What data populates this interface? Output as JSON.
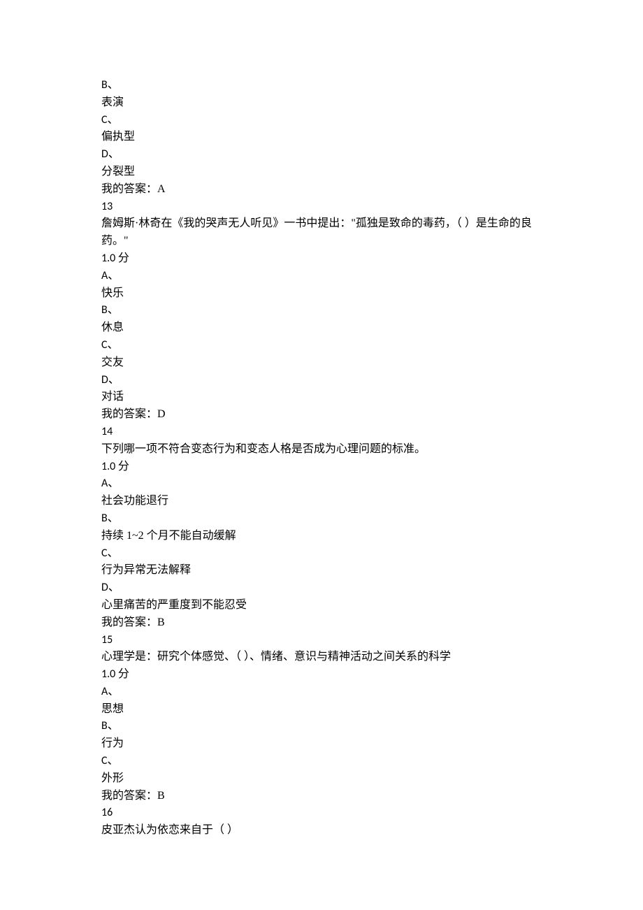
{
  "q12_partial": {
    "opt_b_marker": "B、",
    "opt_b_text": "表演",
    "opt_c_marker": "C、",
    "opt_c_text": "偏执型",
    "opt_d_marker": "D、",
    "opt_d_text": "分裂型",
    "answer": "我的答案：A"
  },
  "q13": {
    "number": "13",
    "stem": "詹姆斯·林奇在《我的哭声无人听见》一书中提出：\"孤独是致命的毒药，（   ）是生命的良药。\"",
    "score": "1.0  分",
    "opt_a_marker": "A、",
    "opt_a_text": "快乐",
    "opt_b_marker": "B、",
    "opt_b_text": "休息",
    "opt_c_marker": "C、",
    "opt_c_text": "交友",
    "opt_d_marker": "D、",
    "opt_d_text": "对话",
    "answer": "我的答案：D"
  },
  "q14": {
    "number": "14",
    "stem": "下列哪一项不符合变态行为和变态人格是否成为心理问题的标准。",
    "score": "1.0  分",
    "opt_a_marker": "A、",
    "opt_a_text": "社会功能退行",
    "opt_b_marker": "B、",
    "opt_b_text": "持续 1~2 个月不能自动缓解",
    "opt_c_marker": "C、",
    "opt_c_text": "行为异常无法解释",
    "opt_d_marker": "D、",
    "opt_d_text": "心里痛苦的严重度到不能忍受",
    "answer": "我的答案：B"
  },
  "q15": {
    "number": "15",
    "stem": "心理学是：研究个体感觉、（   ）、情绪、意识与精神活动之间关系的科学",
    "score": "1.0  分",
    "opt_a_marker": "A、",
    "opt_a_text": "思想",
    "opt_b_marker": "B、",
    "opt_b_text": "行为",
    "opt_c_marker": "C、",
    "opt_c_text": "外形",
    "answer": "我的答案：B"
  },
  "q16": {
    "number": "16",
    "stem": "皮亚杰认为依恋来自于（   ）"
  }
}
